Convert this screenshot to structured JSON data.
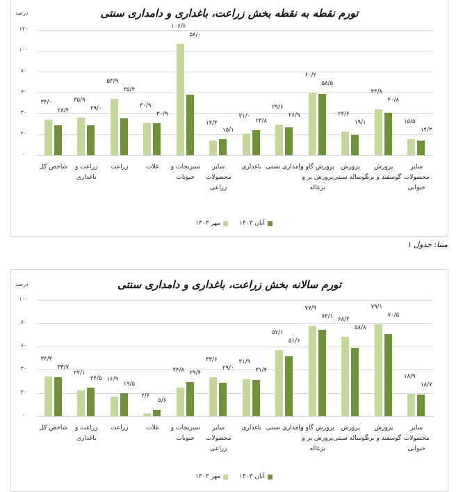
{
  "chart_data": [
    {
      "type": "bar",
      "title": "تورم نقطه به نقطه بخش زراعت، باغداری و دامداری سنتی",
      "ylabel": "درصد",
      "xlabel": "",
      "ylim": [
        0,
        120
      ],
      "yticks": [
        "۰",
        "۲۰",
        "۴۰",
        "۶۰",
        "۸۰",
        "۱۰۰",
        "۱۲۰"
      ],
      "grid": true,
      "legend_position": "bottom",
      "categories": [
        "شاخص کل",
        "زراعت و باغداری",
        "زراعت",
        "غلات",
        "سبزیجات و حبوبات",
        "سایر محصولات زراعی",
        "باغداری",
        "دامداری سنتی",
        "پرورش گاو و پرورش بز و بزغاله",
        "پرورش گوساله سنتی",
        "پرورش گوسفند و بره",
        "سایر محصولات حیوانی"
      ],
      "series": [
        {
          "name": "مهر ۱۴۰۳",
          "color": "#c3d89a",
          "values": [
            34.0,
            35.9,
            53.9,
            30.9,
            106.6,
            14.3,
            21.0,
            29.6,
            60.2,
            22.6,
            43.8,
            15.5
          ]
        },
        {
          "name": "آبان ۱۴۰۳",
          "color": "#6f9139",
          "values": [
            28.4,
            29.0,
            35.4,
            30.9,
            58.0,
            15.1,
            23.8,
            26.9,
            58.5,
            19.1,
            40.8,
            14.3
          ]
        }
      ]
    },
    {
      "type": "bar",
      "title": "تورم سالانه بخش زراعت، باغداری و دامداری سنتی",
      "ylabel": "درصد",
      "xlabel": "",
      "ylim": [
        0,
        100
      ],
      "yticks": [
        "۰",
        "۲۰",
        "۴۰",
        "۶۰",
        "۸۰",
        "۱۰۰"
      ],
      "grid": true,
      "legend_position": "bottom",
      "categories": [
        "شاخص کل",
        "زراعت و باغداری",
        "زراعت",
        "غلات",
        "سبزیجات و حبوبات",
        "سایر محصولات زراعی",
        "باغداری",
        "دامداری سنتی",
        "پرورش گاو و پرورش بز و بزغاله",
        "پرورش گوساله سنتی",
        "پرورش گوسفند و بره",
        "سایر محصولات حیوانی"
      ],
      "series": [
        {
          "name": "مهر ۱۴۰۳",
          "color": "#c3d89a",
          "values": [
            34.4,
            22.1,
            16.9,
            2.6,
            24.8,
            33.6,
            31.9,
            57.1,
            77.9,
            68.2,
            79.1,
            18.9
          ]
        },
        {
          "name": "آبان ۱۴۰۳",
          "color": "#6f9139",
          "values": [
            33.7,
            24.5,
            19.5,
            5.6,
            29.4,
            29.0,
            31.4,
            51.6,
            74.1,
            58.8,
            70.5,
            18.7
          ]
        }
      ]
    }
  ],
  "charts": [
    {
      "title": "تورم نقطه به نقطه بخش زراعت، باغداری و دامداری سنتی",
      "unit": "درصد",
      "yticks": [
        "۰",
        "۲۰",
        "۴۰",
        "۶۰",
        "۸۰",
        "۱۰۰",
        "۱۲۰"
      ],
      "categories": [
        "شاخص کل",
        "زراعت و باغداری",
        "زراعت",
        "غلات",
        "سبزیجات و حبوبات",
        "سایر محصولات زراعی",
        "باغداری",
        "دامداری سنتی",
        "پرورش گاو و پرورش بز و بزغاله",
        "پرورش گوساله سنتی",
        "پرورش گوسفند و بره",
        "سایر محصولات حیوانی"
      ],
      "light_labels": [
        "۳۴/۰",
        "۳۵/۹",
        "۵۳/۹",
        "۳۰/۹",
        "۱۰۶/۶",
        "۱۴/۳",
        "۲۱/۰",
        "۲۹/۶",
        "۶۰/۲",
        "۲۲/۶",
        "۴۳/۸",
        "۱۵/۵"
      ],
      "dark_labels": [
        "۲۸/۴",
        "۲۹/۰",
        "۳۵/۴",
        "۳۰/۹",
        "۵۸/۰",
        "۱۵/۱",
        "۲۳/۸",
        "۲۶/۹",
        "۵۸/۵",
        "۱۹/۱",
        "۴۰/۸",
        "۱۴/۳"
      ],
      "legend": {
        "dark": "آبان ۱۴۰۳",
        "light": "مهر ۱۴۰۳"
      }
    },
    {
      "title": "تورم سالانه بخش زراعت، باغداری و دامداری سنتی",
      "unit": "درصد",
      "yticks": [
        "۰",
        "۲۰",
        "۴۰",
        "۶۰",
        "۸۰",
        "۱۰۰"
      ],
      "categories": [
        "شاخص کل",
        "زراعت و باغداری",
        "زراعت",
        "غلات",
        "سبزیجات و حبوبات",
        "سایر محصولات زراعی",
        "باغداری",
        "دامداری سنتی",
        "پرورش گاو و پرورش بز و بزغاله",
        "پرورش گوساله سنتی",
        "پرورش گوسفند و بره",
        "سایر محصولات حیوانی"
      ],
      "light_labels": [
        "۳۴/۴",
        "۲۲/۱",
        "۱۶/۹",
        "۲/۶",
        "۲۴/۸",
        "۳۳/۶",
        "۳۱/۹",
        "۵۷/۱",
        "۷۷/۹",
        "۶۸/۲",
        "۷۹/۱",
        "۱۸/۹"
      ],
      "dark_labels": [
        "۳۳/۷",
        "۲۴/۵",
        "۱۹/۵",
        "۵/۶",
        "۲۹/۴",
        "۲۹/۰",
        "۳۱/۴",
        "۵۱/۶",
        "۷۴/۱",
        "۵۸/۸",
        "۷۰/۵",
        "۱۸/۷"
      ],
      "legend": {
        "dark": "آبان ۱۴۰۳",
        "light": "مهر ۱۴۰۳"
      }
    }
  ],
  "source_note": "مبنا: جدول ۱",
  "colors": {
    "light": "#c3d89a",
    "dark": "#6f9139",
    "grid": "#d9d9d9"
  }
}
